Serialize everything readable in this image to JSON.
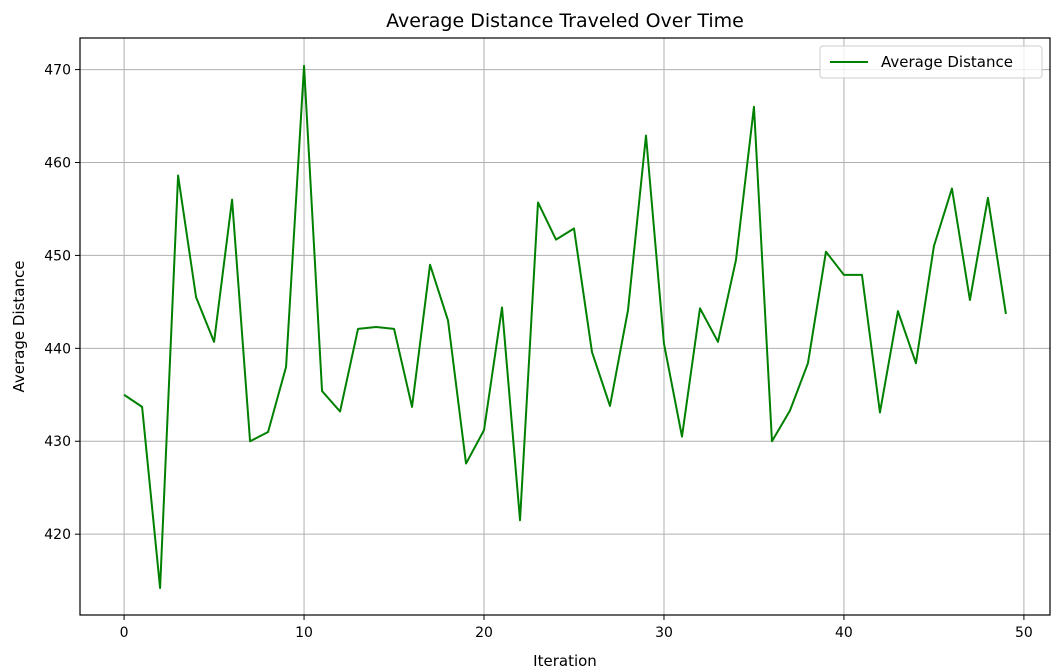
{
  "chart_data": {
    "type": "line",
    "title": "Average Distance Traveled Over Time",
    "xlabel": "Iteration",
    "ylabel": "Average Distance",
    "xlim": [
      -2.45,
      51.45
    ],
    "ylim": [
      411.3,
      473.4
    ],
    "x_ticks": [
      0,
      10,
      20,
      30,
      40,
      50
    ],
    "y_ticks": [
      420,
      430,
      440,
      450,
      460,
      470
    ],
    "grid": true,
    "legend_position": "upper right",
    "series": [
      {
        "name": "Average Distance",
        "color": "#008000",
        "x": [
          0,
          1,
          2,
          3,
          4,
          5,
          6,
          7,
          8,
          9,
          10,
          11,
          12,
          13,
          14,
          15,
          16,
          17,
          18,
          19,
          20,
          21,
          22,
          23,
          24,
          25,
          26,
          27,
          28,
          29,
          30,
          31,
          32,
          33,
          34,
          35,
          36,
          37,
          38,
          39,
          40,
          41,
          42,
          43,
          44,
          45,
          46,
          47,
          48,
          49
        ],
        "values": [
          435.0,
          433.7,
          414.2,
          458.6,
          445.5,
          440.7,
          456.0,
          430.0,
          431.0,
          438.0,
          470.4,
          435.4,
          433.2,
          442.1,
          442.3,
          442.1,
          433.7,
          449.0,
          443.0,
          427.6,
          431.2,
          444.4,
          421.5,
          455.7,
          451.7,
          452.9,
          439.6,
          433.8,
          444.1,
          462.9,
          440.5,
          430.5,
          444.3,
          440.7,
          449.5,
          466.0,
          430.0,
          433.3,
          438.4,
          450.4,
          447.9,
          447.9,
          433.1,
          444.0,
          438.4,
          451.0,
          457.2,
          445.2,
          456.2,
          443.7
        ]
      }
    ]
  }
}
